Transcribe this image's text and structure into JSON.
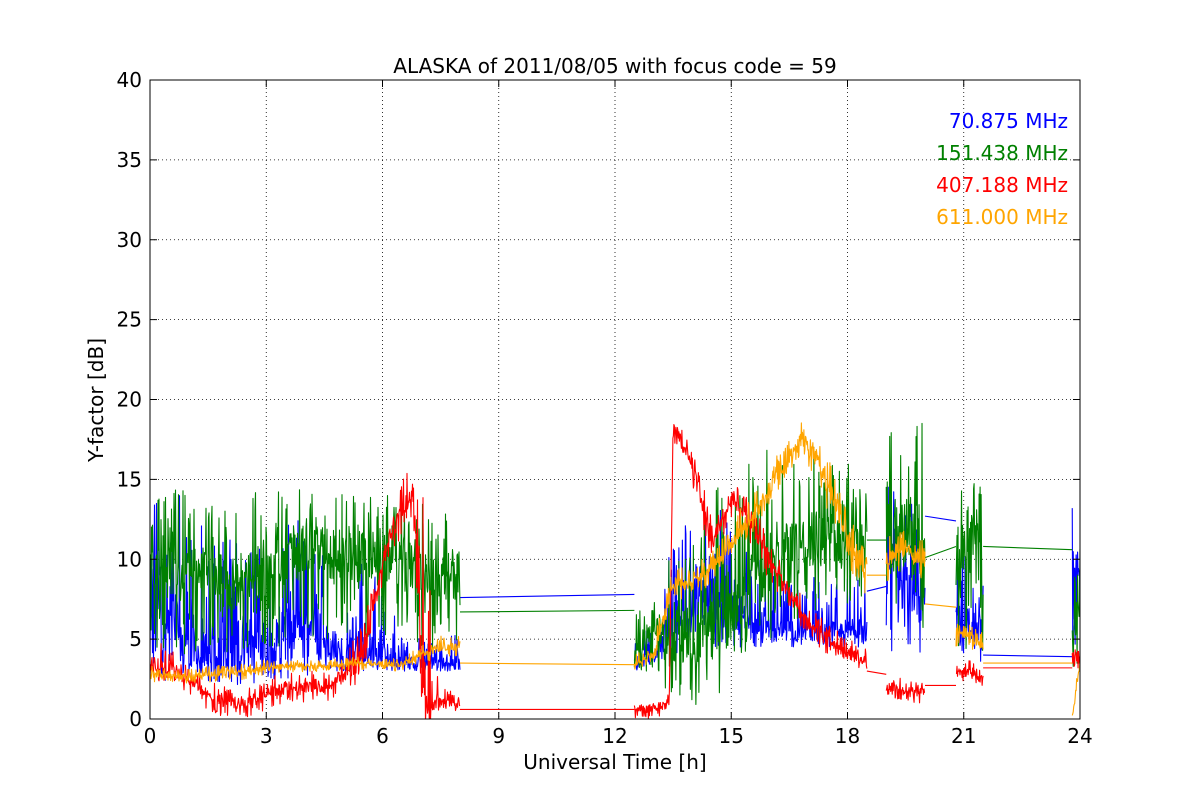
{
  "chart_data": {
    "type": "line",
    "title": "ALASKA of 2011/08/05 with focus code = 59",
    "xlabel": "Universal Time [h]",
    "ylabel": "Y-factor [dB]",
    "xlim": [
      0,
      24
    ],
    "ylim": [
      0,
      40
    ],
    "xticks": [
      0,
      3,
      6,
      9,
      12,
      15,
      18,
      21,
      24
    ],
    "yticks": [
      0,
      5,
      10,
      15,
      20,
      25,
      30,
      35,
      40
    ],
    "grid": true,
    "legend_position": "top-right",
    "series": [
      {
        "name": "70.875 MHz",
        "color": "#0000ff",
        "segments": [
          {
            "x": [
              0.0,
              0.5,
              1.0,
              1.5,
              2.0,
              2.5,
              3.0,
              3.5,
              4.0,
              4.5,
              5.0,
              5.5,
              6.0,
              6.5,
              7.0,
              7.5,
              8.0
            ],
            "y": [
              8.5,
              6.5,
              5.0,
              3.5,
              4.5,
              5.0,
              4.0,
              5.5,
              6.0,
              5.0,
              4.0,
              4.5,
              4.0,
              3.5,
              3.5,
              3.5,
              3.5
            ],
            "lo": [
              2.0,
              2.5,
              2.5,
              2.3,
              2.0,
              2.0,
              2.5,
              2.5,
              2.5,
              2.8,
              3.0,
              3.0,
              3.0,
              3.0,
              3.0,
              3.0,
              3.0
            ],
            "hi": [
              14.5,
              14.0,
              14.0,
              12.0,
              13.0,
              12.5,
              10.0,
              12.0,
              13.0,
              11.0,
              9.0,
              10.0,
              8.5,
              6.0,
              5.0,
              5.0,
              5.5
            ]
          },
          {
            "x": [
              8.0,
              12.5
            ],
            "y": [
              7.6,
              7.8
            ]
          },
          {
            "x": [
              12.5,
              13.0,
              13.5,
              14.0,
              14.5,
              15.0,
              15.5,
              16.0,
              16.5,
              17.0,
              17.5,
              18.0,
              18.5
            ],
            "y": [
              3.5,
              4.0,
              6.0,
              7.5,
              7.5,
              7.0,
              6.5,
              6.0,
              5.5,
              5.5,
              5.5,
              5.5,
              5.5
            ],
            "lo": [
              3.0,
              3.5,
              4.0,
              4.5,
              4.5,
              4.5,
              4.5,
              4.5,
              4.5,
              4.5,
              4.5,
              4.5,
              4.5
            ],
            "hi": [
              5.0,
              6.0,
              12.0,
              13.0,
              14.0,
              12.0,
              11.0,
              10.0,
              9.0,
              9.0,
              9.0,
              9.0,
              9.0
            ]
          },
          {
            "x": [
              18.5,
              19.0
            ],
            "y": [
              8.0,
              8.3
            ]
          },
          {
            "x": [
              19.0,
              19.5,
              20.0
            ],
            "y": [
              9.0,
              8.5,
              8.0
            ],
            "lo": [
              4.0,
              4.0,
              4.0
            ],
            "hi": [
              15.0,
              14.0,
              13.0
            ]
          },
          {
            "x": [
              20.0,
              20.8
            ],
            "y": [
              12.7,
              12.4
            ]
          },
          {
            "x": [
              20.8,
              21.2,
              21.5
            ],
            "y": [
              6.0,
              5.5,
              5.0
            ],
            "lo": [
              4.0,
              4.0,
              3.5
            ],
            "hi": [
              11.0,
              12.0,
              9.0
            ]
          },
          {
            "x": [
              21.5,
              23.8
            ],
            "y": [
              4.0,
              3.9
            ]
          },
          {
            "x": [
              23.8,
              24.0
            ],
            "y": [
              6.0,
              9.0
            ],
            "lo": [
              2.5,
              2.5
            ],
            "hi": [
              14.5,
              14.0
            ]
          }
        ]
      },
      {
        "name": "151.438 MHz",
        "color": "#008000",
        "segments": [
          {
            "x": [
              0.0,
              0.5,
              1.0,
              1.5,
              2.0,
              2.5,
              3.0,
              3.5,
              4.0,
              4.5,
              5.0,
              5.5,
              6.0,
              6.5,
              7.0,
              7.5,
              8.0
            ],
            "y": [
              9.5,
              9.0,
              9.0,
              9.0,
              8.5,
              9.0,
              9.0,
              10.0,
              10.5,
              10.5,
              10.0,
              10.5,
              10.0,
              10.0,
              9.0,
              8.5,
              9.0
            ],
            "lo": [
              4.0,
              4.0,
              4.0,
              4.0,
              4.0,
              4.5,
              4.5,
              4.5,
              5.0,
              5.0,
              5.0,
              5.0,
              5.0,
              5.0,
              4.5,
              4.0,
              4.0
            ],
            "hi": [
              14.0,
              14.5,
              14.5,
              13.5,
              14.0,
              14.0,
              15.5,
              14.0,
              14.5,
              14.5,
              14.5,
              14.0,
              14.0,
              14.0,
              13.5,
              13.0,
              13.0
            ]
          },
          {
            "x": [
              8.0,
              12.5
            ],
            "y": [
              6.7,
              6.8
            ]
          },
          {
            "x": [
              12.5,
              13.0,
              13.5,
              14.0,
              14.5,
              15.0,
              15.5,
              16.0,
              16.5,
              17.0,
              17.5,
              18.0,
              18.5
            ],
            "y": [
              4.0,
              5.5,
              5.5,
              5.0,
              6.0,
              7.0,
              8.5,
              10.0,
              10.5,
              11.0,
              11.5,
              11.0,
              11.0
            ],
            "lo": [
              3.0,
              3.0,
              0.5,
              0.5,
              1.0,
              2.5,
              4.0,
              5.0,
              6.0,
              6.5,
              7.0,
              7.0,
              7.0
            ],
            "hi": [
              6.5,
              8.0,
              11.0,
              11.0,
              15.0,
              16.0,
              16.5,
              17.0,
              17.5,
              17.5,
              17.0,
              16.0,
              16.0
            ]
          },
          {
            "x": [
              18.5,
              19.0
            ],
            "y": [
              11.2,
              11.2
            ]
          },
          {
            "x": [
              19.0,
              19.5,
              20.0
            ],
            "y": [
              11.0,
              11.5,
              11.0
            ],
            "lo": [
              5.0,
              5.0,
              5.0
            ],
            "hi": [
              18.5,
              18.0,
              19.0
            ]
          },
          {
            "x": [
              20.0,
              20.8
            ],
            "y": [
              10.1,
              10.8
            ]
          },
          {
            "x": [
              20.8,
              21.2,
              21.5
            ],
            "y": [
              10.0,
              11.0,
              9.5
            ],
            "lo": [
              4.0,
              4.0,
              4.0
            ],
            "hi": [
              14.0,
              15.5,
              15.5
            ]
          },
          {
            "x": [
              21.5,
              23.8
            ],
            "y": [
              10.8,
              10.6
            ]
          },
          {
            "x": [
              23.8,
              24.0
            ],
            "y": [
              5.0,
              8.0
            ],
            "lo": [
              3.0,
              3.0
            ],
            "hi": [
              9.0,
              12.0
            ]
          }
        ]
      },
      {
        "name": "407.188 MHz",
        "color": "#ff0000",
        "segments": [
          {
            "x": [
              0.0,
              0.5,
              1.0,
              1.5,
              2.0,
              2.5,
              3.0,
              3.5,
              4.0,
              4.5,
              5.0,
              5.5,
              5.8,
              6.2,
              6.6,
              6.8,
              7.0,
              7.2,
              7.5,
              8.0
            ],
            "y": [
              3.5,
              3.0,
              2.5,
              1.5,
              1.0,
              1.0,
              1.5,
              2.0,
              2.0,
              2.0,
              2.5,
              4.0,
              7.5,
              11.5,
              13.5,
              14.0,
              3.0,
              1.0,
              1.0,
              1.0
            ],
            "lo": [
              2.5,
              2.0,
              1.5,
              0.5,
              0.0,
              0.0,
              0.5,
              1.0,
              1.0,
              1.0,
              1.5,
              2.5,
              6.5,
              9.5,
              12.5,
              12.0,
              1.0,
              0.5,
              0.5,
              0.5
            ],
            "hi": [
              5.0,
              5.0,
              3.5,
              2.5,
              2.0,
              2.0,
              2.5,
              3.0,
              3.0,
              3.0,
              3.5,
              6.5,
              8.5,
              12.5,
              15.5,
              15.5,
              15.0,
              12.0,
              2.0,
              1.5
            ]
          },
          {
            "x": [
              8.0,
              12.5
            ],
            "y": [
              0.6,
              0.6
            ]
          },
          {
            "x": [
              12.5,
              13.0,
              13.4,
              13.5,
              14.0,
              14.5,
              15.0,
              15.5,
              16.0,
              16.5,
              17.0,
              17.5,
              18.0,
              18.5
            ],
            "y": [
              0.5,
              0.7,
              1.0,
              18.5,
              16.0,
              11.0,
              14.0,
              12.5,
              10.0,
              8.0,
              6.0,
              5.0,
              4.0,
              3.5
            ],
            "lo": [
              0.0,
              0.0,
              0.5,
              17.5,
              14.0,
              10.0,
              12.5,
              11.0,
              8.5,
              7.0,
              5.0,
              4.0,
              3.5,
              3.0
            ],
            "hi": [
              1.0,
              1.5,
              1.5,
              19.0,
              17.0,
              13.0,
              15.0,
              14.0,
              11.0,
              9.0,
              7.0,
              6.0,
              5.0,
              4.5
            ]
          },
          {
            "x": [
              18.5,
              19.0
            ],
            "y": [
              3.0,
              2.8
            ]
          },
          {
            "x": [
              19.0,
              19.5,
              20.0
            ],
            "y": [
              2.0,
              1.8,
              1.7
            ],
            "lo": [
              1.5,
              1.0,
              1.0
            ],
            "hi": [
              2.8,
              2.5,
              2.3
            ]
          },
          {
            "x": [
              20.0,
              20.8
            ],
            "y": [
              2.1,
              2.1
            ]
          },
          {
            "x": [
              20.8,
              21.2,
              21.5
            ],
            "y": [
              2.8,
              3.0,
              2.5
            ],
            "lo": [
              2.0,
              2.3,
              2.0
            ],
            "hi": [
              3.5,
              3.8,
              3.5
            ]
          },
          {
            "x": [
              21.5,
              23.8
            ],
            "y": [
              3.2,
              3.2
            ]
          },
          {
            "x": [
              23.8,
              24.0
            ],
            "y": [
              4.0,
              4.0
            ],
            "lo": [
              3.0,
              3.0
            ],
            "hi": [
              4.5,
              4.5
            ]
          }
        ]
      },
      {
        "name": "611.000 MHz",
        "color": "#ffa500",
        "segments": [
          {
            "x": [
              0.0,
              0.5,
              1.0,
              1.5,
              2.0,
              2.5,
              3.0,
              3.5,
              4.0,
              4.5,
              5.0,
              5.5,
              6.0,
              6.5,
              7.0,
              7.5,
              8.0
            ],
            "y": [
              2.8,
              2.7,
              2.6,
              2.8,
              2.9,
              3.0,
              3.2,
              3.3,
              3.3,
              3.3,
              3.4,
              3.5,
              3.4,
              3.4,
              4.0,
              4.5,
              4.5
            ],
            "lo": [
              2.3,
              2.3,
              2.2,
              2.3,
              2.4,
              2.5,
              2.8,
              2.9,
              2.9,
              3.0,
              3.0,
              3.1,
              3.0,
              3.0,
              3.5,
              3.8,
              3.8
            ],
            "hi": [
              3.3,
              3.2,
              3.1,
              3.3,
              3.4,
              3.5,
              3.7,
              3.7,
              3.7,
              3.7,
              3.8,
              3.9,
              3.8,
              3.8,
              4.8,
              5.2,
              5.2
            ]
          },
          {
            "x": [
              8.0,
              12.5
            ],
            "y": [
              3.5,
              3.4
            ]
          },
          {
            "x": [
              12.5,
              13.0,
              13.5,
              14.0,
              14.5,
              15.0,
              15.5,
              16.0,
              16.5,
              16.8,
              17.0,
              17.5,
              18.0,
              18.5
            ],
            "y": [
              3.5,
              4.0,
              8.5,
              8.5,
              9.5,
              11.0,
              12.5,
              14.5,
              16.5,
              17.5,
              17.0,
              15.0,
              11.0,
              9.5
            ],
            "lo": [
              3.0,
              3.5,
              7.5,
              7.5,
              8.5,
              10.0,
              11.5,
              13.5,
              15.5,
              16.5,
              15.5,
              13.0,
              9.0,
              7.5
            ],
            "hi": [
              4.0,
              5.0,
              9.5,
              9.5,
              10.5,
              12.5,
              14.0,
              16.0,
              17.5,
              19.0,
              18.0,
              16.5,
              13.0,
              11.0
            ]
          },
          {
            "x": [
              18.5,
              19.0
            ],
            "y": [
              9.0,
              9.0
            ]
          },
          {
            "x": [
              19.0,
              19.5,
              20.0
            ],
            "y": [
              10.0,
              10.5,
              10.0
            ],
            "lo": [
              8.5,
              9.0,
              8.5
            ],
            "hi": [
              11.5,
              12.0,
              11.5
            ]
          },
          {
            "x": [
              20.0,
              20.8
            ],
            "y": [
              7.2,
              7.0
            ]
          },
          {
            "x": [
              20.8,
              21.2,
              21.5
            ],
            "y": [
              5.5,
              5.0,
              4.5
            ],
            "lo": [
              4.5,
              4.0,
              4.0
            ],
            "hi": [
              6.0,
              6.0,
              5.5
            ]
          },
          {
            "x": [
              21.5,
              23.8
            ],
            "y": [
              3.5,
              3.5
            ]
          },
          {
            "x": [
              23.8,
              24.0
            ],
            "y": [
              0.2,
              3.5
            ],
            "lo": [
              0.0,
              3.0
            ],
            "hi": [
              1.0,
              4.0
            ]
          }
        ]
      }
    ]
  }
}
